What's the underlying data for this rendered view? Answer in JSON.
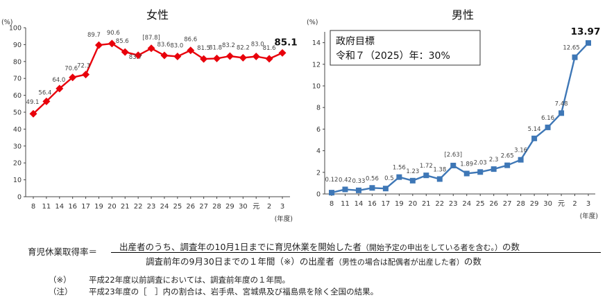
{
  "chart_data": [
    {
      "id": "female",
      "type": "line",
      "title": "女性",
      "ylabel": "(%)",
      "xlabel": "(年度)",
      "ylim": [
        0,
        100
      ],
      "yticks": [
        0,
        10,
        20,
        30,
        40,
        50,
        60,
        70,
        80,
        90,
        100
      ],
      "grid": false,
      "color": "#e8000b",
      "marker": "diamond",
      "categories": [
        "8",
        "11",
        "14",
        "16",
        "17",
        "19",
        "20",
        "21",
        "22",
        "23",
        "24",
        "25",
        "26",
        "27",
        "28",
        "29",
        "30",
        "元",
        "2",
        "3"
      ],
      "series": [
        {
          "values": [
            49.1,
            56.4,
            64.0,
            70.6,
            72.3,
            89.7,
            90.6,
            85.6,
            83.7,
            87.8,
            83.6,
            83.0,
            86.6,
            81.5,
            81.8,
            83.2,
            82.2,
            83.0,
            81.6,
            85.1
          ]
        }
      ],
      "labels": [
        "49.1",
        "56.4",
        "64.0",
        "70.6",
        "72.3",
        "89.7",
        "90.6",
        "85.6",
        "83.7",
        "[87.8]",
        "83.6",
        "83.0",
        "86.6",
        "81.5",
        "81.8",
        "83.2",
        "82.2",
        "83.0",
        "81.6",
        "85.1"
      ],
      "highlight_last": true
    },
    {
      "id": "male",
      "type": "line",
      "title": "男性",
      "ylabel": "(%)",
      "xlabel": "(年度)",
      "ylim": [
        0,
        15
      ],
      "yticks": [
        0,
        2,
        4,
        6,
        8,
        10,
        12,
        14
      ],
      "grid": false,
      "color": "#3e77b6",
      "marker": "square",
      "categories": [
        "8",
        "11",
        "14",
        "16",
        "17",
        "19",
        "20",
        "21",
        "22",
        "23",
        "24",
        "25",
        "26",
        "27",
        "28",
        "29",
        "30",
        "元",
        "2",
        "3"
      ],
      "series": [
        {
          "values": [
            0.12,
            0.42,
            0.33,
            0.56,
            0.5,
            1.56,
            1.23,
            1.72,
            1.38,
            2.63,
            1.89,
            2.03,
            2.3,
            2.65,
            3.16,
            5.14,
            6.16,
            7.48,
            12.65,
            13.97
          ]
        }
      ],
      "labels": [
        "0.12",
        "0.42",
        "0.33",
        "0.56",
        "0.5",
        "1.56",
        "1.23",
        "1.72",
        "1.38",
        "[2.63]",
        "1.89",
        "2.03",
        "2.3",
        "2.65",
        "3.16",
        "5.14",
        "6.16",
        "7.48",
        "12.65",
        "13.97"
      ],
      "highlight_last": true,
      "annotation": {
        "line1": "政府目標",
        "line2": "令和７（2025）年：30%"
      }
    }
  ],
  "formula": {
    "lhs": "育児休業取得率＝",
    "numerator": "出産者のうち、調査年の10月1日までに育児休業を開始した者",
    "numerator_note": "（開始予定の申出をしている者を含む。）",
    "numerator_tail": "の数",
    "denominator": "調査前年の9月30日までの１年間（※）の出産者",
    "denominator_note": "（男性の場合は配偶者が出産した者）",
    "denominator_tail": "の数"
  },
  "notes": [
    {
      "mark": "（※）",
      "text": "平成22年度以前調査においては、調査前年度の１年間。"
    },
    {
      "mark": "（注）",
      "text": "平成23年度の［　］内の割合は、岩手県、宮城県及び福島県を除く全国の結果。"
    }
  ]
}
